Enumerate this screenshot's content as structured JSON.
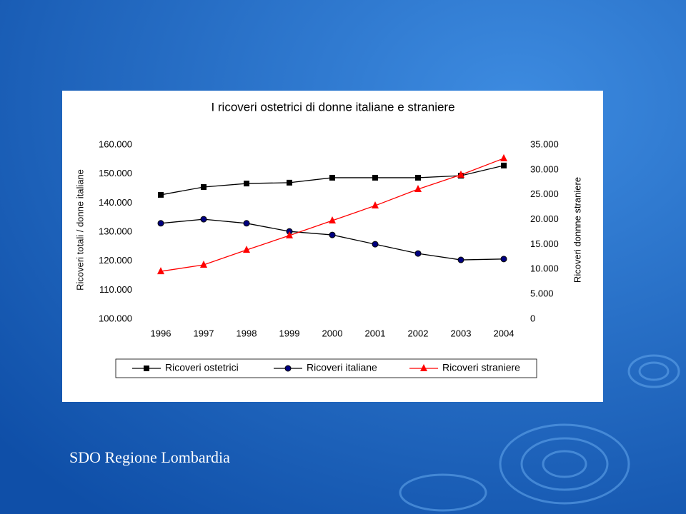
{
  "chart_data": {
    "type": "line",
    "title": "I ricoveri ostetrici di donne italiane e straniere",
    "ylabel": "Ricoveri totali / donne italiane",
    "y2label": "Ricoveri donnne straniere",
    "categories": [
      "1996",
      "1997",
      "1998",
      "1999",
      "2000",
      "2001",
      "2002",
      "2003",
      "2004"
    ],
    "series": [
      {
        "name": "Ricoveri ostetrici",
        "color": "#000000",
        "marker": "square",
        "values": [
          142800,
          145500,
          146700,
          147000,
          148700,
          148700,
          148700,
          149400,
          152900
        ]
      },
      {
        "name": "Ricoveri italiane",
        "color": "#000080",
        "marker": "circle",
        "values": [
          133000,
          134400,
          133000,
          130200,
          129000,
          125800,
          122600,
          120400,
          120700
        ]
      },
      {
        "name": "Ricoveri straniere",
        "color": "#ff0000",
        "marker": "triangle",
        "axis": "y2",
        "values": [
          9600,
          10900,
          13900,
          16800,
          19800,
          22800,
          26100,
          29000,
          32300
        ]
      }
    ],
    "ylim": [
      100000,
      160000
    ],
    "yticks": [
      {
        "value": 100000,
        "label": "100.000"
      },
      {
        "value": 110000,
        "label": "110.000"
      },
      {
        "value": 120000,
        "label": "120.000"
      },
      {
        "value": 130000,
        "label": "130.000"
      },
      {
        "value": 140000,
        "label": "140.000"
      },
      {
        "value": 150000,
        "label": "150.000"
      },
      {
        "value": 160000,
        "label": "160.000"
      }
    ],
    "y2lim": [
      0,
      35000
    ],
    "y2ticks": [
      0,
      {
        "value": 5000,
        "label": "5.000"
      },
      {
        "value": 10000,
        "label": "10.000"
      },
      {
        "value": 15000,
        "label": "15.000"
      },
      {
        "value": 20000,
        "label": "20.000"
      },
      {
        "value": 25000,
        "label": "25.000"
      },
      {
        "value": 30000,
        "label": "30.000"
      },
      {
        "value": 35000,
        "label": "35.000"
      }
    ],
    "grid": false,
    "legend": "bottom"
  },
  "footer": "SDO Regione Lombardia"
}
